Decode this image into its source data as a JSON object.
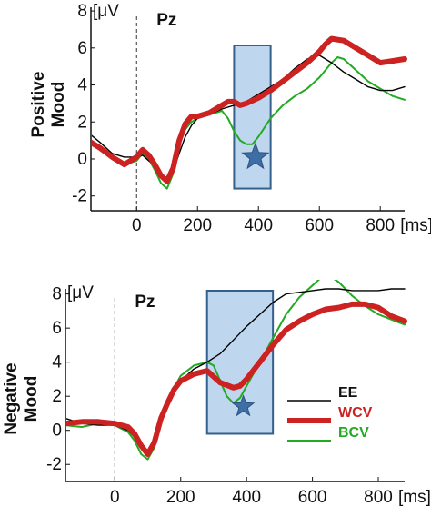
{
  "chart_data": [
    {
      "type": "line",
      "channel": "Pz",
      "ylabel": [
        "Positive",
        "Mood"
      ],
      "y_unit": "[μV",
      "x_unit": "[ms]",
      "xlim": [
        -150,
        880
      ],
      "ylim": [
        -2.8,
        8.2
      ],
      "x_ticks": [
        0,
        200,
        400,
        600,
        800
      ],
      "y_ticks": [
        -2,
        0,
        2,
        4,
        6,
        8
      ],
      "window": [
        320,
        440
      ],
      "star_at": [
        390,
        0.1
      ],
      "series": [
        {
          "name": "EE",
          "color": "#000000",
          "points": [
            [
              -150,
              1.3
            ],
            [
              -120,
              0.9
            ],
            [
              -80,
              0.3
            ],
            [
              -40,
              0.1
            ],
            [
              0,
              0.1
            ],
            [
              20,
              0.2
            ],
            [
              40,
              -0.1
            ],
            [
              60,
              -0.3
            ],
            [
              80,
              -0.9
            ],
            [
              100,
              -1.0
            ],
            [
              120,
              -0.7
            ],
            [
              140,
              0.3
            ],
            [
              160,
              1.2
            ],
            [
              180,
              1.8
            ],
            [
              200,
              2.2
            ],
            [
              240,
              2.4
            ],
            [
              280,
              2.7
            ],
            [
              320,
              2.9
            ],
            [
              360,
              3.1
            ],
            [
              400,
              3.5
            ],
            [
              440,
              3.9
            ],
            [
              480,
              4.3
            ],
            [
              520,
              4.9
            ],
            [
              560,
              5.4
            ],
            [
              600,
              5.6
            ],
            [
              640,
              5.2
            ],
            [
              680,
              4.7
            ],
            [
              720,
              4.3
            ],
            [
              760,
              3.9
            ],
            [
              800,
              3.7
            ],
            [
              840,
              3.7
            ],
            [
              880,
              3.9
            ]
          ]
        },
        {
          "name": "WCV",
          "color": "#cc2222",
          "points": [
            [
              -150,
              0.9
            ],
            [
              -120,
              0.6
            ],
            [
              -80,
              0.1
            ],
            [
              -40,
              -0.3
            ],
            [
              0,
              0.1
            ],
            [
              20,
              0.5
            ],
            [
              40,
              0.2
            ],
            [
              60,
              -0.3
            ],
            [
              80,
              -0.9
            ],
            [
              100,
              -1.2
            ],
            [
              120,
              -0.5
            ],
            [
              140,
              1.0
            ],
            [
              160,
              1.9
            ],
            [
              180,
              2.3
            ],
            [
              200,
              2.3
            ],
            [
              240,
              2.5
            ],
            [
              280,
              2.9
            ],
            [
              300,
              3.1
            ],
            [
              320,
              3.1
            ],
            [
              340,
              2.9
            ],
            [
              360,
              3.0
            ],
            [
              400,
              3.3
            ],
            [
              440,
              3.7
            ],
            [
              480,
              4.2
            ],
            [
              520,
              4.7
            ],
            [
              560,
              5.2
            ],
            [
              600,
              5.8
            ],
            [
              620,
              6.2
            ],
            [
              640,
              6.5
            ],
            [
              680,
              6.4
            ],
            [
              720,
              6.0
            ],
            [
              760,
              5.6
            ],
            [
              800,
              5.2
            ],
            [
              840,
              5.3
            ],
            [
              880,
              5.4
            ]
          ]
        },
        {
          "name": "BCV",
          "color": "#22aa22",
          "points": [
            [
              -150,
              1.0
            ],
            [
              -120,
              0.5
            ],
            [
              -80,
              0.1
            ],
            [
              -40,
              -0.3
            ],
            [
              0,
              -0.1
            ],
            [
              20,
              0.3
            ],
            [
              40,
              0.0
            ],
            [
              60,
              -0.6
            ],
            [
              80,
              -1.3
            ],
            [
              100,
              -1.6
            ],
            [
              120,
              -0.8
            ],
            [
              140,
              0.8
            ],
            [
              160,
              1.6
            ],
            [
              180,
              2.0
            ],
            [
              200,
              2.2
            ],
            [
              240,
              2.4
            ],
            [
              280,
              2.6
            ],
            [
              300,
              2.2
            ],
            [
              320,
              1.5
            ],
            [
              340,
              1.0
            ],
            [
              360,
              0.8
            ],
            [
              380,
              0.8
            ],
            [
              400,
              1.2
            ],
            [
              440,
              2.2
            ],
            [
              480,
              2.9
            ],
            [
              520,
              3.4
            ],
            [
              560,
              3.8
            ],
            [
              600,
              4.4
            ],
            [
              640,
              5.2
            ],
            [
              660,
              5.5
            ],
            [
              680,
              5.4
            ],
            [
              720,
              4.8
            ],
            [
              760,
              4.2
            ],
            [
              800,
              3.8
            ],
            [
              840,
              3.4
            ],
            [
              880,
              3.2
            ]
          ]
        }
      ]
    },
    {
      "type": "line",
      "channel": "Pz",
      "ylabel": [
        "Negative",
        "Mood"
      ],
      "y_unit": "[μV",
      "x_unit": "[ms]",
      "xlim": [
        -150,
        880
      ],
      "ylim": [
        -3.0,
        8.3
      ],
      "x_ticks": [
        0,
        200,
        400,
        600,
        800
      ],
      "y_ticks": [
        -2,
        0,
        2,
        4,
        6,
        8
      ],
      "window": [
        280,
        480
      ],
      "star_at": [
        390,
        1.4
      ],
      "legend_position": "bottom-right",
      "series": [
        {
          "name": "EE",
          "color": "#000000",
          "points": [
            [
              -150,
              0.7
            ],
            [
              -100,
              0.4
            ],
            [
              -50,
              0.3
            ],
            [
              0,
              0.3
            ],
            [
              40,
              0.0
            ],
            [
              60,
              -0.4
            ],
            [
              80,
              -1.0
            ],
            [
              100,
              -1.3
            ],
            [
              120,
              -0.8
            ],
            [
              140,
              0.4
            ],
            [
              160,
              1.4
            ],
            [
              180,
              2.2
            ],
            [
              200,
              2.9
            ],
            [
              240,
              3.6
            ],
            [
              280,
              4.0
            ],
            [
              320,
              4.5
            ],
            [
              360,
              5.3
            ],
            [
              400,
              6.1
            ],
            [
              440,
              6.8
            ],
            [
              480,
              7.5
            ],
            [
              520,
              8.0
            ],
            [
              560,
              8.1
            ],
            [
              600,
              8.2
            ],
            [
              640,
              8.3
            ],
            [
              680,
              8.3
            ],
            [
              720,
              8.2
            ],
            [
              760,
              8.2
            ],
            [
              800,
              8.2
            ],
            [
              840,
              8.3
            ],
            [
              880,
              8.3
            ]
          ]
        },
        {
          "name": "WCV",
          "color": "#cc2222",
          "points": [
            [
              -150,
              0.4
            ],
            [
              -100,
              0.5
            ],
            [
              -50,
              0.5
            ],
            [
              0,
              0.4
            ],
            [
              40,
              0.2
            ],
            [
              60,
              -0.2
            ],
            [
              80,
              -0.9
            ],
            [
              100,
              -1.4
            ],
            [
              120,
              -0.7
            ],
            [
              140,
              0.7
            ],
            [
              160,
              1.6
            ],
            [
              180,
              2.4
            ],
            [
              200,
              2.9
            ],
            [
              240,
              3.3
            ],
            [
              280,
              3.5
            ],
            [
              320,
              2.8
            ],
            [
              360,
              2.5
            ],
            [
              380,
              2.6
            ],
            [
              400,
              3.0
            ],
            [
              440,
              4.0
            ],
            [
              480,
              5.0
            ],
            [
              520,
              5.9
            ],
            [
              560,
              6.4
            ],
            [
              600,
              6.8
            ],
            [
              640,
              7.1
            ],
            [
              680,
              7.2
            ],
            [
              720,
              7.4
            ],
            [
              760,
              7.4
            ],
            [
              800,
              7.2
            ],
            [
              840,
              6.7
            ],
            [
              880,
              6.4
            ]
          ]
        },
        {
          "name": "BCV",
          "color": "#22aa22",
          "points": [
            [
              -150,
              0.3
            ],
            [
              -100,
              0.2
            ],
            [
              -50,
              0.4
            ],
            [
              0,
              0.3
            ],
            [
              40,
              -0.1
            ],
            [
              60,
              -0.6
            ],
            [
              80,
              -1.4
            ],
            [
              100,
              -1.7
            ],
            [
              120,
              -1.0
            ],
            [
              140,
              0.4
            ],
            [
              160,
              1.5
            ],
            [
              180,
              2.5
            ],
            [
              200,
              3.2
            ],
            [
              240,
              3.8
            ],
            [
              280,
              4.0
            ],
            [
              300,
              3.8
            ],
            [
              320,
              2.9
            ],
            [
              340,
              2.0
            ],
            [
              360,
              1.6
            ],
            [
              380,
              1.9
            ],
            [
              400,
              2.6
            ],
            [
              440,
              4.0
            ],
            [
              480,
              5.4
            ],
            [
              520,
              6.8
            ],
            [
              560,
              7.8
            ],
            [
              600,
              8.5
            ],
            [
              640,
              9.2
            ],
            [
              680,
              8.7
            ],
            [
              720,
              7.9
            ],
            [
              760,
              7.3
            ],
            [
              800,
              6.8
            ],
            [
              840,
              6.5
            ],
            [
              880,
              6.2
            ]
          ]
        }
      ]
    }
  ]
}
